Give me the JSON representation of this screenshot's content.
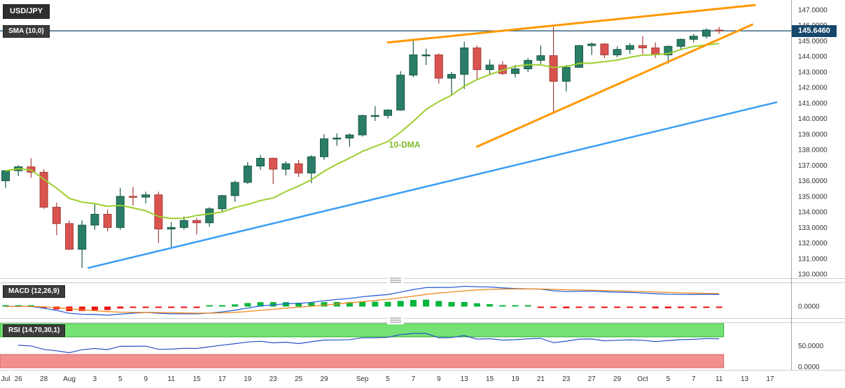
{
  "chart_data": {
    "type": "candlestick",
    "symbol": "USD/JPY",
    "current_price": "145.6460",
    "colors": {
      "up": "#2a7d66",
      "up_dark": "#1c5a49",
      "down": "#d9534f",
      "down_dark": "#a63f3b",
      "sma": "#9dce2e",
      "macd_line": "#2b5fd9",
      "macd_signal": "#ef8a1e",
      "hist_pos": "#06b53c",
      "hist_neg": "#ee1111",
      "rsi_line": "#2b50c8",
      "rsi_ob": "#74e274",
      "rsi_ob_edge": "#35b035",
      "rsi_os": "#f29090",
      "rsi_os_edge": "#d96060",
      "price_line": "#16486b"
    },
    "y_axis": {
      "min": 130,
      "max": 147,
      "step": 1,
      "labels": [
        "147.0000",
        "146.0000",
        "145.0000",
        "144.0000",
        "143.0000",
        "142.0000",
        "141.0000",
        "140.0000",
        "139.0000",
        "138.0000",
        "137.0000",
        "136.0000",
        "135.0000",
        "134.0000",
        "133.0000",
        "132.0000",
        "131.0000",
        "130.0000"
      ]
    },
    "x_ticks": [
      {
        "label": "Jul",
        "day": 0
      },
      {
        "label": "26",
        "day": 1
      },
      {
        "label": "28",
        "day": 3
      },
      {
        "label": "Aug",
        "day": 5
      },
      {
        "label": "3",
        "day": 7
      },
      {
        "label": "5",
        "day": 9
      },
      {
        "label": "9",
        "day": 11
      },
      {
        "label": "11",
        "day": 13
      },
      {
        "label": "15",
        "day": 15
      },
      {
        "label": "17",
        "day": 17
      },
      {
        "label": "19",
        "day": 19
      },
      {
        "label": "23",
        "day": 21
      },
      {
        "label": "25",
        "day": 23
      },
      {
        "label": "29",
        "day": 25
      },
      {
        "label": "Sep",
        "day": 28
      },
      {
        "label": "5",
        "day": 30
      },
      {
        "label": "7",
        "day": 32
      },
      {
        "label": "9",
        "day": 34
      },
      {
        "label": "13",
        "day": 36
      },
      {
        "label": "15",
        "day": 38
      },
      {
        "label": "19",
        "day": 40
      },
      {
        "label": "21",
        "day": 42
      },
      {
        "label": "23",
        "day": 44
      },
      {
        "label": "27",
        "day": 46
      },
      {
        "label": "29",
        "day": 48
      },
      {
        "label": "Oct",
        "day": 50
      },
      {
        "label": "5",
        "day": 52
      },
      {
        "label": "7",
        "day": 54
      },
      {
        "label": "11",
        "day": 56
      },
      {
        "label": "13",
        "day": 58
      },
      {
        "label": "17",
        "day": 60
      }
    ],
    "indicators": {
      "sma": {
        "label": "SMA (10,0)",
        "period": 10
      },
      "macd": {
        "label": "MACD (12,26,9)",
        "fast": 12,
        "slow": 26,
        "signal": 9,
        "zero_label": "0.0000"
      },
      "rsi": {
        "label": "RSI (14,70,30,1)",
        "period": 14,
        "overbought": 70,
        "oversold": 30,
        "mid_label": "50.0000",
        "bottom_label": "0.0000"
      }
    },
    "annotations": {
      "trendlines": [
        {
          "name": "trendline-support-blue",
          "color": "#3b9df5",
          "width": 2.5,
          "from": {
            "day": 6.5,
            "price": 130.4
          },
          "to": {
            "day": 60.5,
            "price": 141.05
          }
        },
        {
          "name": "trendline-wedge-upper-orange",
          "color": "#ff9800",
          "width": 3,
          "from": {
            "day": 30,
            "price": 144.9
          },
          "to": {
            "day": 58.8,
            "price": 147.3
          }
        },
        {
          "name": "trendline-wedge-lower-orange",
          "color": "#ff9800",
          "width": 3,
          "from": {
            "day": 37,
            "price": 138.2
          },
          "to": {
            "day": 58.6,
            "price": 146.05
          }
        }
      ],
      "labels": [
        {
          "label": "10-DMA",
          "day": 30.1,
          "price": 138.15,
          "color": "#7fba28"
        }
      ]
    },
    "candles": [
      {
        "d": "Jul 25",
        "o": 136.0,
        "h": 136.65,
        "l": 135.55,
        "c": 136.65
      },
      {
        "d": "Jul 26",
        "o": 136.65,
        "h": 137.0,
        "l": 136.3,
        "c": 136.9
      },
      {
        "d": "Jul 27",
        "o": 136.9,
        "h": 137.45,
        "l": 136.2,
        "c": 136.55
      },
      {
        "d": "Jul 28",
        "o": 136.55,
        "h": 136.75,
        "l": 134.2,
        "c": 134.3
      },
      {
        "d": "Jul 29",
        "o": 134.3,
        "h": 134.6,
        "l": 132.5,
        "c": 133.25
      },
      {
        "d": "Aug 01",
        "o": 133.25,
        "h": 133.45,
        "l": 131.55,
        "c": 131.6
      },
      {
        "d": "Aug 02",
        "o": 131.6,
        "h": 133.45,
        "l": 130.4,
        "c": 133.15
      },
      {
        "d": "Aug 03",
        "o": 133.15,
        "h": 134.55,
        "l": 132.85,
        "c": 133.85
      },
      {
        "d": "Aug 04",
        "o": 133.85,
        "h": 134.15,
        "l": 132.75,
        "c": 133.0
      },
      {
        "d": "Aug 05",
        "o": 133.0,
        "h": 135.55,
        "l": 132.85,
        "c": 135.0
      },
      {
        "d": "Aug 08",
        "o": 135.0,
        "h": 135.6,
        "l": 134.4,
        "c": 134.95
      },
      {
        "d": "Aug 09",
        "o": 134.95,
        "h": 135.3,
        "l": 134.55,
        "c": 135.1
      },
      {
        "d": "Aug 10",
        "o": 135.1,
        "h": 135.3,
        "l": 132.0,
        "c": 132.9
      },
      {
        "d": "Aug 11",
        "o": 132.9,
        "h": 133.35,
        "l": 131.75,
        "c": 133.0
      },
      {
        "d": "Aug 12",
        "o": 133.0,
        "h": 133.7,
        "l": 132.85,
        "c": 133.45
      },
      {
        "d": "Aug 15",
        "o": 133.45,
        "h": 133.6,
        "l": 132.55,
        "c": 133.3
      },
      {
        "d": "Aug 16",
        "o": 133.3,
        "h": 134.3,
        "l": 133.05,
        "c": 134.2
      },
      {
        "d": "Aug 17",
        "o": 134.2,
        "h": 135.1,
        "l": 134.0,
        "c": 135.05
      },
      {
        "d": "Aug 18",
        "o": 135.05,
        "h": 136.0,
        "l": 134.65,
        "c": 135.9
      },
      {
        "d": "Aug 19",
        "o": 135.9,
        "h": 137.2,
        "l": 135.8,
        "c": 136.95
      },
      {
        "d": "Aug 22",
        "o": 136.95,
        "h": 137.65,
        "l": 136.7,
        "c": 137.45
      },
      {
        "d": "Aug 23",
        "o": 137.45,
        "h": 137.5,
        "l": 135.8,
        "c": 136.75
      },
      {
        "d": "Aug 24",
        "o": 136.75,
        "h": 137.25,
        "l": 136.35,
        "c": 137.1
      },
      {
        "d": "Aug 25",
        "o": 137.1,
        "h": 137.35,
        "l": 136.25,
        "c": 136.5
      },
      {
        "d": "Aug 26",
        "o": 136.5,
        "h": 137.65,
        "l": 135.85,
        "c": 137.55
      },
      {
        "d": "Aug 29",
        "o": 137.55,
        "h": 139.0,
        "l": 137.35,
        "c": 138.7
      },
      {
        "d": "Aug 30",
        "o": 138.7,
        "h": 139.05,
        "l": 138.25,
        "c": 138.75
      },
      {
        "d": "Aug 31",
        "o": 138.75,
        "h": 139.05,
        "l": 138.2,
        "c": 138.95
      },
      {
        "d": "Sep 01",
        "o": 138.95,
        "h": 140.25,
        "l": 138.85,
        "c": 140.2
      },
      {
        "d": "Sep 02",
        "o": 140.2,
        "h": 140.8,
        "l": 139.85,
        "c": 140.2
      },
      {
        "d": "Sep 05",
        "o": 140.2,
        "h": 140.6,
        "l": 140.0,
        "c": 140.55
      },
      {
        "d": "Sep 06",
        "o": 140.55,
        "h": 143.05,
        "l": 140.5,
        "c": 142.8
      },
      {
        "d": "Sep 07",
        "o": 142.8,
        "h": 145.0,
        "l": 142.65,
        "c": 144.1
      },
      {
        "d": "Sep 08",
        "o": 144.1,
        "h": 144.5,
        "l": 143.45,
        "c": 144.1
      },
      {
        "d": "Sep 09",
        "o": 144.1,
        "h": 144.2,
        "l": 142.25,
        "c": 142.6
      },
      {
        "d": "Sep 12",
        "o": 142.6,
        "h": 143.0,
        "l": 141.5,
        "c": 142.85
      },
      {
        "d": "Sep 13",
        "o": 142.85,
        "h": 144.95,
        "l": 141.9,
        "c": 144.55
      },
      {
        "d": "Sep 14",
        "o": 144.55,
        "h": 144.7,
        "l": 142.55,
        "c": 143.15
      },
      {
        "d": "Sep 15",
        "o": 143.15,
        "h": 143.8,
        "l": 142.8,
        "c": 143.45
      },
      {
        "d": "Sep 16",
        "o": 143.45,
        "h": 143.7,
        "l": 142.8,
        "c": 142.9
      },
      {
        "d": "Sep 19",
        "o": 142.9,
        "h": 143.45,
        "l": 142.65,
        "c": 143.2
      },
      {
        "d": "Sep 20",
        "o": 143.2,
        "h": 143.9,
        "l": 143.0,
        "c": 143.75
      },
      {
        "d": "Sep 21",
        "o": 143.75,
        "h": 144.7,
        "l": 143.5,
        "c": 144.05
      },
      {
        "d": "Sep 22",
        "o": 144.05,
        "h": 145.9,
        "l": 140.35,
        "c": 142.4
      },
      {
        "d": "Sep 23",
        "o": 142.4,
        "h": 143.45,
        "l": 141.75,
        "c": 143.3
      },
      {
        "d": "Sep 26",
        "o": 143.3,
        "h": 144.75,
        "l": 143.25,
        "c": 144.7
      },
      {
        "d": "Sep 27",
        "o": 144.7,
        "h": 144.9,
        "l": 144.1,
        "c": 144.8
      },
      {
        "d": "Sep 28",
        "o": 144.8,
        "h": 144.85,
        "l": 143.9,
        "c": 144.1
      },
      {
        "d": "Sep 29",
        "o": 144.1,
        "h": 144.65,
        "l": 143.95,
        "c": 144.45
      },
      {
        "d": "Sep 30",
        "o": 144.45,
        "h": 144.85,
        "l": 144.15,
        "c": 144.7
      },
      {
        "d": "Oct 03",
        "o": 144.7,
        "h": 145.3,
        "l": 144.15,
        "c": 144.55
      },
      {
        "d": "Oct 04",
        "o": 144.55,
        "h": 144.9,
        "l": 143.9,
        "c": 144.1
      },
      {
        "d": "Oct 05",
        "o": 144.1,
        "h": 144.7,
        "l": 143.55,
        "c": 144.65
      },
      {
        "d": "Oct 06",
        "o": 144.65,
        "h": 145.15,
        "l": 144.45,
        "c": 145.1
      },
      {
        "d": "Oct 07",
        "o": 145.1,
        "h": 145.45,
        "l": 144.9,
        "c": 145.3
      },
      {
        "d": "Oct 10",
        "o": 145.3,
        "h": 145.8,
        "l": 145.15,
        "c": 145.7
      },
      {
        "d": "Oct 11",
        "o": 145.7,
        "h": 145.9,
        "l": 145.45,
        "c": 145.65
      }
    ]
  }
}
